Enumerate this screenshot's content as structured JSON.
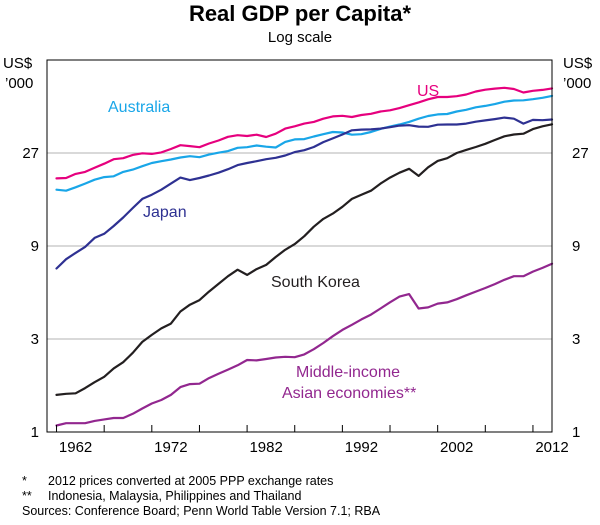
{
  "chart_data": {
    "type": "line",
    "title": "Real GDP per Capita*",
    "subtitle": "Log scale",
    "ylabel_left": [
      "US$",
      "’000"
    ],
    "ylabel_right": [
      "US$",
      "’000"
    ],
    "yscale": "log",
    "ylim": [
      1,
      81
    ],
    "xlim": [
      1959,
      2012
    ],
    "y_ticks": [
      1,
      3,
      9,
      27
    ],
    "y_tick_labels": [
      "1",
      "3",
      "9",
      "27"
    ],
    "x_ticks": [
      1962,
      1972,
      1982,
      1992,
      2002,
      2012
    ],
    "x_tick_labels": [
      "1962",
      "1972",
      "1982",
      "1992",
      "2002",
      "2012"
    ],
    "grid": true,
    "series": [
      {
        "name": "US",
        "color": "#e6007e",
        "x": [
          1960,
          1961,
          1962,
          1963,
          1964,
          1965,
          1966,
          1967,
          1968,
          1969,
          1970,
          1971,
          1972,
          1973,
          1974,
          1975,
          1976,
          1977,
          1978,
          1979,
          1980,
          1981,
          1982,
          1983,
          1984,
          1985,
          1986,
          1987,
          1988,
          1989,
          1990,
          1991,
          1992,
          1993,
          1994,
          1995,
          1996,
          1997,
          1998,
          1999,
          2000,
          2001,
          2002,
          2003,
          2004,
          2005,
          2006,
          2007,
          2008,
          2009,
          2010,
          2011,
          2012
        ],
        "values": [
          20.0,
          20.1,
          21.1,
          21.6,
          22.7,
          23.8,
          25.1,
          25.4,
          26.4,
          26.9,
          26.7,
          27.2,
          28.3,
          29.6,
          29.3,
          28.9,
          30.2,
          31.3,
          32.7,
          33.3,
          33.0,
          33.5,
          32.6,
          33.9,
          36.0,
          37.0,
          38.2,
          39.0,
          40.5,
          41.6,
          41.9,
          41.3,
          42.3,
          42.9,
          44.1,
          44.7,
          45.9,
          47.5,
          49.1,
          50.9,
          52.3,
          52.3,
          52.8,
          53.9,
          55.8,
          57.0,
          57.8,
          58.3,
          57.5,
          55.2,
          56.3,
          56.9,
          57.9
        ]
      },
      {
        "name": "Australia",
        "color": "#19a6e8",
        "x": [
          1960,
          1961,
          1962,
          1963,
          1964,
          1965,
          1966,
          1967,
          1968,
          1969,
          1970,
          1971,
          1972,
          1973,
          1974,
          1975,
          1976,
          1977,
          1978,
          1979,
          1980,
          1981,
          1982,
          1983,
          1984,
          1985,
          1986,
          1987,
          1988,
          1989,
          1990,
          1991,
          1992,
          1993,
          1994,
          1995,
          1996,
          1997,
          1998,
          1999,
          2000,
          2001,
          2002,
          2003,
          2004,
          2005,
          2006,
          2007,
          2008,
          2009,
          2010,
          2011,
          2012
        ],
        "values": [
          17.5,
          17.3,
          18.0,
          18.8,
          19.7,
          20.3,
          20.5,
          21.6,
          22.2,
          23.1,
          24.0,
          24.5,
          25.0,
          25.6,
          26.0,
          25.7,
          26.5,
          27.1,
          27.6,
          28.7,
          28.9,
          29.5,
          29.1,
          28.8,
          30.8,
          31.7,
          31.8,
          32.8,
          33.7,
          34.6,
          34.4,
          33.5,
          33.7,
          34.6,
          35.9,
          36.9,
          37.8,
          39.0,
          40.5,
          41.8,
          42.6,
          42.8,
          44.1,
          45.0,
          46.3,
          47.1,
          48.1,
          49.5,
          50.2,
          50.3,
          51.0,
          51.8,
          53.0
        ]
      },
      {
        "name": "Japan",
        "color": "#2e3192",
        "x": [
          1960,
          1961,
          1962,
          1963,
          1964,
          1965,
          1966,
          1967,
          1968,
          1969,
          1970,
          1971,
          1972,
          1973,
          1974,
          1975,
          1976,
          1977,
          1978,
          1979,
          1980,
          1981,
          1982,
          1983,
          1984,
          1985,
          1986,
          1987,
          1988,
          1989,
          1990,
          1991,
          1992,
          1993,
          1994,
          1995,
          1996,
          1997,
          1998,
          1999,
          2000,
          2001,
          2002,
          2003,
          2004,
          2005,
          2006,
          2007,
          2008,
          2009,
          2010,
          2011,
          2012
        ],
        "values": [
          6.9,
          7.7,
          8.3,
          8.9,
          9.9,
          10.4,
          11.4,
          12.6,
          14.1,
          15.7,
          16.5,
          17.5,
          18.8,
          20.2,
          19.6,
          20.1,
          20.7,
          21.4,
          22.3,
          23.4,
          24.0,
          24.5,
          25.1,
          25.5,
          26.2,
          27.3,
          27.9,
          29.0,
          30.7,
          32.1,
          33.6,
          35.3,
          35.6,
          35.7,
          36.0,
          36.6,
          37.3,
          37.5,
          36.9,
          36.8,
          37.7,
          37.8,
          37.8,
          38.2,
          39.1,
          39.7,
          40.3,
          41.0,
          40.5,
          38.2,
          39.9,
          39.8,
          40.1
        ]
      },
      {
        "name": "South Korea",
        "color": "#231f20",
        "x": [
          1960,
          1961,
          1962,
          1963,
          1964,
          1965,
          1966,
          1967,
          1968,
          1969,
          1970,
          1971,
          1972,
          1973,
          1974,
          1975,
          1976,
          1977,
          1978,
          1979,
          1980,
          1981,
          1982,
          1983,
          1984,
          1985,
          1986,
          1987,
          1988,
          1989,
          1990,
          1991,
          1992,
          1993,
          1994,
          1995,
          1996,
          1997,
          1998,
          1999,
          2000,
          2001,
          2002,
          2003,
          2004,
          2005,
          2006,
          2007,
          2008,
          2009,
          2010,
          2011,
          2012
        ],
        "values": [
          1.55,
          1.57,
          1.58,
          1.68,
          1.8,
          1.92,
          2.12,
          2.28,
          2.55,
          2.9,
          3.15,
          3.4,
          3.6,
          4.15,
          4.5,
          4.75,
          5.25,
          5.75,
          6.3,
          6.8,
          6.4,
          6.85,
          7.2,
          7.9,
          8.6,
          9.2,
          10.1,
          11.3,
          12.4,
          13.2,
          14.3,
          15.7,
          16.5,
          17.3,
          18.8,
          20.2,
          21.4,
          22.4,
          20.6,
          22.8,
          24.6,
          25.4,
          27.0,
          28.0,
          29.0,
          30.1,
          31.5,
          32.9,
          33.6,
          33.9,
          35.8,
          37.0,
          37.9
        ]
      },
      {
        "name": "Middle-income Asian economies**",
        "color": "#92278f",
        "x": [
          1960,
          1961,
          1962,
          1963,
          1964,
          1965,
          1966,
          1967,
          1968,
          1969,
          1970,
          1971,
          1972,
          1973,
          1974,
          1975,
          1976,
          1977,
          1978,
          1979,
          1980,
          1981,
          1982,
          1983,
          1984,
          1985,
          1986,
          1987,
          1988,
          1989,
          1990,
          1991,
          1992,
          1993,
          1994,
          1995,
          1996,
          1997,
          1998,
          1999,
          2000,
          2001,
          2002,
          2003,
          2004,
          2005,
          2006,
          2007,
          2008,
          2009,
          2010,
          2011,
          2012
        ],
        "values": [
          1.08,
          1.11,
          1.11,
          1.11,
          1.14,
          1.16,
          1.18,
          1.18,
          1.24,
          1.32,
          1.4,
          1.46,
          1.55,
          1.7,
          1.76,
          1.77,
          1.89,
          1.99,
          2.09,
          2.2,
          2.34,
          2.33,
          2.37,
          2.41,
          2.43,
          2.42,
          2.5,
          2.66,
          2.86,
          3.1,
          3.34,
          3.55,
          3.78,
          4.0,
          4.3,
          4.63,
          4.95,
          5.1,
          4.3,
          4.36,
          4.56,
          4.62,
          4.8,
          5.03,
          5.25,
          5.48,
          5.74,
          6.04,
          6.3,
          6.3,
          6.65,
          6.95,
          7.3
        ]
      }
    ],
    "annotations": [
      {
        "text": "US",
        "color": "#e6007e"
      },
      {
        "text": "Australia",
        "color": "#19a6e8"
      },
      {
        "text": "Japan",
        "color": "#2e3192"
      },
      {
        "text": "South Korea",
        "color": "#231f20"
      },
      {
        "text": "Middle-income",
        "color": "#92278f"
      },
      {
        "text": "Asian economies**",
        "color": "#92278f"
      }
    ]
  },
  "footnotes": [
    {
      "mark": "*",
      "text": "2012 prices converted at 2005 PPP exchange rates"
    },
    {
      "mark": "**",
      "text": "Indonesia, Malaysia, Philippines and Thailand"
    }
  ],
  "sources": "Sources: Conference Board; Penn World Table Version 7.1; RBA"
}
